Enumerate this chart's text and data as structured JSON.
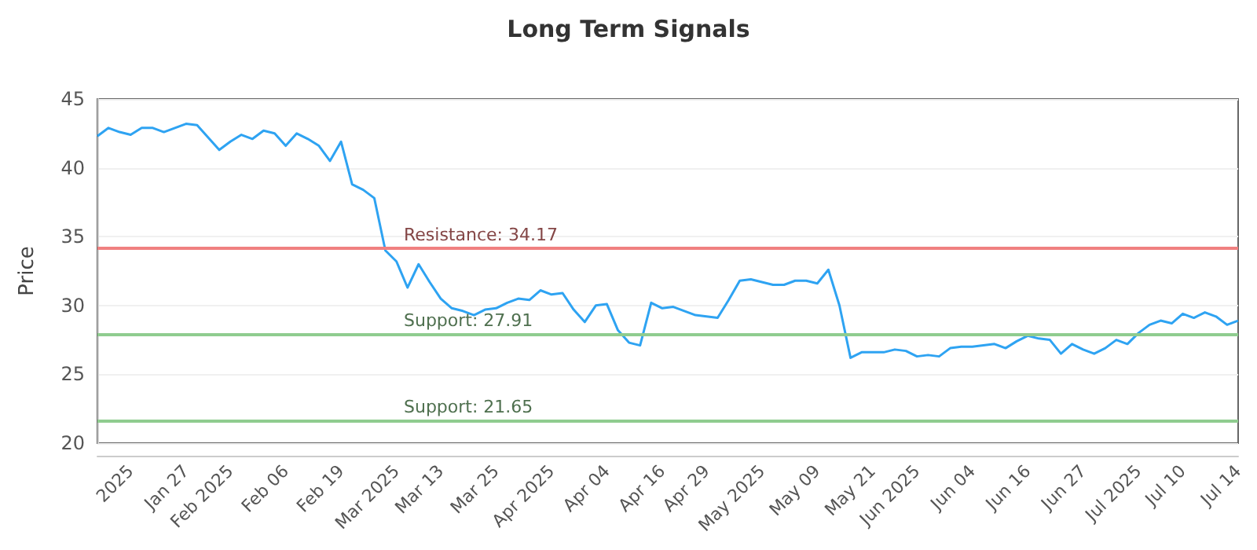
{
  "chart_data": {
    "type": "line",
    "title": "Long Term Signals",
    "ylabel": "Price",
    "categories": [
      null,
      null,
      null,
      "2025",
      null,
      null,
      null,
      null,
      "Jan 27",
      null,
      null,
      null,
      "Feb 2025",
      null,
      null,
      null,
      null,
      "Feb 06",
      null,
      null,
      null,
      null,
      "Feb 19",
      null,
      null,
      null,
      null,
      "Mar 2025",
      null,
      null,
      null,
      "Mar 13",
      null,
      null,
      null,
      null,
      "Mar 25",
      null,
      null,
      null,
      null,
      "Apr 2025",
      null,
      null,
      null,
      null,
      "Apr 04",
      null,
      null,
      null,
      null,
      "Apr 16",
      null,
      null,
      null,
      "Apr 29",
      null,
      null,
      null,
      null,
      "May 2025",
      null,
      null,
      null,
      null,
      "May 09",
      null,
      null,
      null,
      null,
      "May 21",
      null,
      null,
      null,
      "Jun 2025",
      null,
      null,
      null,
      null,
      "Jun 04",
      null,
      null,
      null,
      null,
      "Jun 16",
      null,
      null,
      null,
      null,
      "Jun 27",
      null,
      null,
      null,
      null,
      "Jul 2025",
      null,
      null,
      null,
      "Jul 10",
      null,
      null,
      null,
      null,
      "Jul 14"
    ],
    "series": [
      {
        "color": "#2ea3f2",
        "values": [
          42.3,
          42.9,
          42.6,
          42.4,
          42.9,
          42.9,
          42.6,
          42.9,
          43.2,
          43.1,
          42.2,
          41.3,
          41.9,
          42.4,
          42.1,
          42.7,
          42.5,
          41.6,
          42.5,
          42.1,
          41.6,
          40.5,
          41.9,
          38.8,
          38.4,
          37.8,
          34.0,
          33.2,
          31.3,
          33.0,
          31.7,
          30.5,
          29.8,
          29.6,
          29.3,
          29.7,
          29.8,
          30.2,
          30.5,
          30.4,
          31.1,
          30.8,
          30.9,
          29.7,
          28.8,
          30.0,
          30.1,
          28.2,
          27.3,
          27.1,
          30.2,
          29.8,
          29.9,
          29.6,
          29.3,
          29.2,
          29.1,
          30.4,
          31.8,
          31.9,
          31.7,
          31.5,
          31.5,
          31.8,
          31.8,
          31.6,
          32.6,
          30.0,
          26.2,
          26.6,
          26.6,
          26.6,
          26.8,
          26.7,
          26.3,
          26.4,
          26.3,
          26.9,
          27.0,
          27.0,
          27.1,
          27.2,
          26.9,
          27.4,
          27.8,
          27.6,
          27.5,
          26.5,
          27.2,
          26.8,
          26.5,
          26.9,
          27.5,
          27.2,
          28.0,
          28.6,
          28.9,
          28.7,
          29.4,
          29.1,
          29.5,
          29.2,
          28.6,
          28.9
        ]
      }
    ],
    "ylim": [
      20,
      45
    ],
    "yticks": [
      20,
      25,
      30,
      35,
      40,
      45
    ],
    "grid": "y",
    "marker": "none",
    "line_style": "solid",
    "ref_lines": [
      {
        "axis": "y",
        "value": 34.17,
        "label": "Resistance: 34.17",
        "color": "#f08080"
      },
      {
        "axis": "y",
        "value": 27.91,
        "label": "Support: 27.91",
        "color": "#8fcc8f"
      },
      {
        "axis": "y",
        "value": 21.65,
        "label": "Support: 21.65",
        "color": "#8fcc8f"
      }
    ]
  }
}
